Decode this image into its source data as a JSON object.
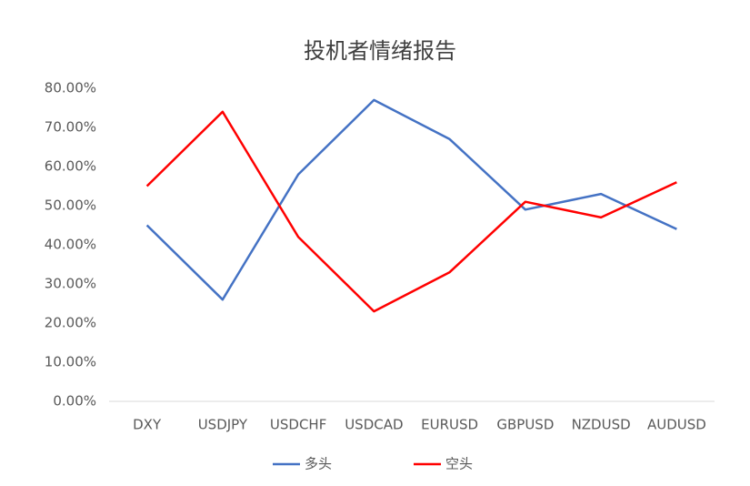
{
  "chart_data": {
    "type": "line",
    "title": "投机者情绪报告",
    "categories": [
      "DXY",
      "USDJPY",
      "USDCHF",
      "USDCAD",
      "EURUSD",
      "GBPUSD",
      "NZDUSD",
      "AUDUSD"
    ],
    "series": [
      {
        "name": "多头",
        "color": "#4472c4",
        "values": [
          45,
          26,
          58,
          77,
          67,
          49,
          53,
          44
        ]
      },
      {
        "name": "空头",
        "color": "#ff0000",
        "values": [
          55,
          74,
          42,
          23,
          33,
          51,
          47,
          56
        ]
      }
    ],
    "ylim": [
      0,
      80
    ],
    "yticks": [
      {
        "value": 0,
        "label": "0.00%"
      },
      {
        "value": 10,
        "label": "10.00%"
      },
      {
        "value": 20,
        "label": "20.00%"
      },
      {
        "value": 30,
        "label": "30.00%"
      },
      {
        "value": 40,
        "label": "40.00%"
      },
      {
        "value": 50,
        "label": "50.00%"
      },
      {
        "value": 60,
        "label": "60.00%"
      },
      {
        "value": 70,
        "label": "70.00%"
      },
      {
        "value": 80,
        "label": "80.00%"
      }
    ],
    "grid": false,
    "legend": "bottom"
  }
}
